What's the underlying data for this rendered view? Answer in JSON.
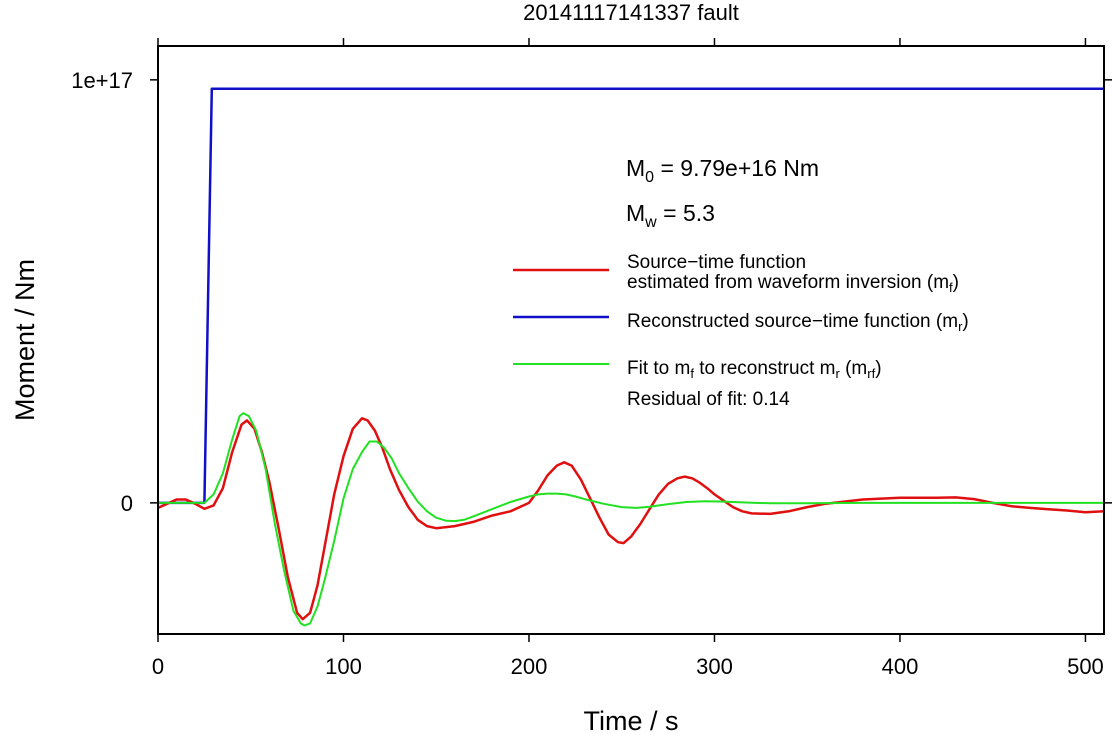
{
  "chart_data": {
    "type": "line",
    "title": "20141117141337 fault",
    "xlabel": "Time / s",
    "ylabel": "Moment / Nm",
    "xlim": [
      0,
      510
    ],
    "ylim": [
      -3.1e+16,
      1.08e+17
    ],
    "x_ticks": [
      0,
      100,
      200,
      300,
      400,
      500
    ],
    "x_tick_labels": [
      "0",
      "100",
      "200",
      "300",
      "400",
      "500"
    ],
    "y_ticks": [
      0,
      1e+17
    ],
    "y_tick_labels": [
      "0",
      "1e+17"
    ],
    "grid": false,
    "legend_position": "right",
    "annotations": {
      "m0": {
        "symbol": "M",
        "sub": "0",
        "rest": " = 9.79e+16 Nm"
      },
      "mw": {
        "symbol": "M",
        "sub": "w",
        "rest": " = 5.3"
      },
      "residual": "Residual of fit: 0.14"
    },
    "series": [
      {
        "id": "mf",
        "color": "#e01010",
        "legend_line1": "Source−time function",
        "legend_line2": {
          "text": "estimated from waveform inversion (m",
          "sub": "f",
          "after": ")"
        },
        "x": [
          0,
          5,
          10,
          15,
          20,
          25,
          30,
          35,
          40,
          45,
          48,
          52,
          56,
          60,
          65,
          70,
          75,
          78,
          82,
          86,
          90,
          95,
          100,
          105,
          110,
          113,
          117,
          121,
          125,
          130,
          135,
          140,
          145,
          150,
          160,
          170,
          180,
          190,
          200,
          205,
          210,
          215,
          219,
          223,
          228,
          233,
          238,
          243,
          248,
          251,
          255,
          260,
          265,
          270,
          275,
          280,
          284,
          288,
          292,
          296,
          300,
          305,
          310,
          315,
          320,
          330,
          340,
          350,
          360,
          370,
          380,
          390,
          400,
          410,
          420,
          430,
          440,
          450,
          460,
          470,
          480,
          490,
          500,
          510
        ],
        "y": [
          -1200000000000000.0,
          -200000000000000.0,
          800000000000000.0,
          800000000000000.0,
          -200000000000000.0,
          -1400000000000000.0,
          -600000000000000.0,
          3500000000000000.0,
          1.2e+16,
          1.85e+16,
          1.95e+16,
          1.75e+16,
          1.2e+16,
          5000000000000000.0,
          -6000000000000000.0,
          -1.75e+16,
          -2.6e+16,
          -2.75e+16,
          -2.6e+16,
          -1.95e+16,
          -1e+16,
          2000000000000000.0,
          1.1e+16,
          1.75e+16,
          2e+16,
          1.95e+16,
          1.7e+16,
          1.3e+16,
          8000000000000000.0,
          3000000000000000.0,
          -1000000000000000.0,
          -4000000000000000.0,
          -5500000000000000.0,
          -6000000000000000.0,
          -5500000000000000.0,
          -4500000000000000.0,
          -3000000000000000.0,
          -2000000000000000.0,
          0,
          3000000000000000.0,
          6500000000000000.0,
          8800000000000000.0,
          9600000000000000.0,
          8800000000000000.0,
          5500000000000000.0,
          1000000000000000.0,
          -3500000000000000.0,
          -7500000000000000.0,
          -9300000000000000.0,
          -9500000000000000.0,
          -8000000000000000.0,
          -5000000000000000.0,
          -1500000000000000.0,
          2000000000000000.0,
          4500000000000000.0,
          5800000000000000.0,
          6200000000000000.0,
          5800000000000000.0,
          4800000000000000.0,
          3500000000000000.0,
          2000000000000000.0,
          500000000000000.0,
          -1000000000000000.0,
          -2000000000000000.0,
          -2500000000000000.0,
          -2600000000000000.0,
          -2000000000000000.0,
          -1000000000000000.0,
          -200000000000000.0,
          300000000000000.0,
          800000000000000.0,
          1000000000000000.0,
          1200000000000000.0,
          1200000000000000.0,
          1200000000000000.0,
          1300000000000000.0,
          900000000000000.0,
          0,
          -800000000000000.0,
          -1200000000000000.0,
          -1500000000000000.0,
          -1800000000000000.0,
          -2200000000000000.0,
          -2000000000000000.0
        ]
      },
      {
        "id": "mr",
        "color": "#1010c8",
        "legend_line1": {
          "text": "Reconstructed source−time function (m",
          "sub": "r",
          "after": ")"
        },
        "x": [
          0,
          24,
          25,
          29,
          30,
          35,
          100,
          200,
          300,
          400,
          510
        ],
        "y": [
          0,
          0,
          0,
          9.79e+16,
          9.79e+16,
          9.79e+16,
          9.79e+16,
          9.79e+16,
          9.79e+16,
          9.79e+16,
          9.79e+16
        ]
      },
      {
        "id": "mrf",
        "color": "#22e022",
        "legend_line1": {
          "pre": "Fit to m",
          "sub1": "f",
          "mid": " to reconstruct m",
          "sub2": "r",
          "mid2": " (m",
          "sub3": "rf",
          "after": ")"
        },
        "x": [
          0,
          10,
          20,
          25,
          30,
          35,
          40,
          44,
          46,
          49,
          53,
          58,
          63,
          68,
          73,
          77,
          79,
          82,
          86,
          90,
          95,
          100,
          105,
          110,
          114,
          118,
          122,
          126,
          130,
          135,
          140,
          145,
          150,
          155,
          160,
          165,
          170,
          180,
          190,
          200,
          205,
          210,
          215,
          220,
          225,
          230,
          240,
          250,
          258,
          265,
          275,
          285,
          295,
          305,
          315,
          330,
          350,
          380,
          420,
          460,
          510
        ],
        "y": [
          0,
          0,
          0,
          0,
          2000000000000000.0,
          7000000000000000.0,
          1.5e+16,
          2.05e+16,
          2.12e+16,
          2.05e+16,
          1.7e+16,
          8000000000000000.0,
          -5000000000000000.0,
          -1.6e+16,
          -2.55e+16,
          -2.85e+16,
          -2.9e+16,
          -2.85e+16,
          -2.45e+16,
          -1.8e+16,
          -9000000000000000.0,
          1000000000000000.0,
          8000000000000000.0,
          1.2e+16,
          1.45e+16,
          1.45e+16,
          1.3e+16,
          1.05e+16,
          7000000000000000.0,
          3500000000000000.0,
          300000000000000.0,
          -2000000000000000.0,
          -3500000000000000.0,
          -4200000000000000.0,
          -4300000000000000.0,
          -4000000000000000.0,
          -3200000000000000.0,
          -1500000000000000.0,
          200000000000000.0,
          1500000000000000.0,
          2000000000000000.0,
          2200000000000000.0,
          2200000000000000.0,
          2000000000000000.0,
          1500000000000000.0,
          900000000000000.0,
          -200000000000000.0,
          -1000000000000000.0,
          -1200000000000000.0,
          -900000000000000.0,
          -300000000000000.0,
          200000000000000.0,
          400000000000000.0,
          300000000000000.0,
          100000000000000.0,
          -100000000000000.0,
          -100000000000000.0,
          0,
          0,
          0,
          0
        ]
      }
    ]
  }
}
